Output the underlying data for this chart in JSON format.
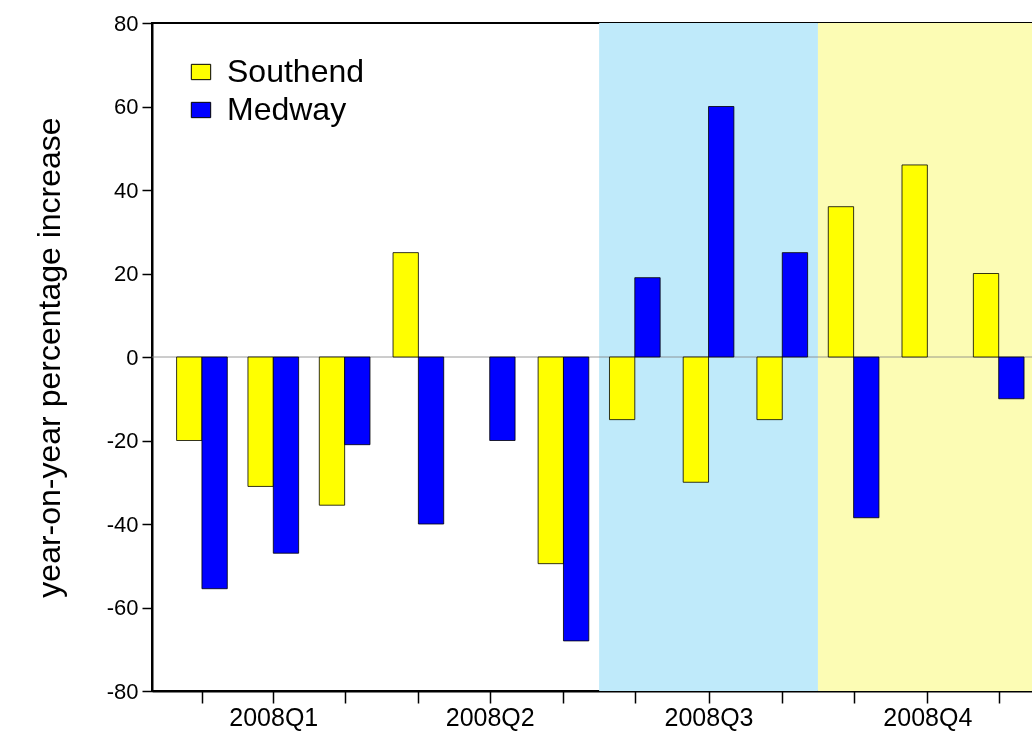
{
  "chart_data": {
    "type": "bar",
    "ylabel": "year-on-year percentage increase",
    "x": [
      "2008-01-16",
      "2008-02-15",
      "2008-03-16",
      "2008-04-16",
      "2008-05-16",
      "2008-06-16",
      "2008-07-16",
      "2008-08-16",
      "2008-09-16",
      "2008-10-16",
      "2008-11-16",
      "2008-12-16"
    ],
    "xlim": [
      "2007-12-26",
      "2008-12-30"
    ],
    "xticks": [
      {
        "value": "2008-01-16",
        "label": null
      },
      {
        "value": "2008-02-15",
        "label": "2008Q1"
      },
      {
        "value": "2008-03-16",
        "label": null
      },
      {
        "value": "2008-04-16",
        "label": null
      },
      {
        "value": "2008-05-16",
        "label": "2008Q2"
      },
      {
        "value": "2008-06-16",
        "label": null
      },
      {
        "value": "2008-07-16",
        "label": null
      },
      {
        "value": "2008-08-16",
        "label": "2008Q3"
      },
      {
        "value": "2008-09-16",
        "label": null
      },
      {
        "value": "2008-10-16",
        "label": null
      },
      {
        "value": "2008-11-16",
        "label": "2008Q4"
      },
      {
        "value": "2008-12-16",
        "label": null
      }
    ],
    "ylim": [
      -80,
      80
    ],
    "yticks": [
      -80,
      -60,
      -40,
      -20,
      0,
      20,
      40,
      60,
      80
    ],
    "series": [
      {
        "name": "Southend",
        "color": "#ffff00",
        "values": [
          -20,
          -31,
          -35.5,
          25,
          null,
          -49.5,
          -15,
          -30,
          -15,
          36,
          46,
          20
        ]
      },
      {
        "name": "Medway",
        "color": "#0000ff",
        "values": [
          -55.5,
          -47,
          -21,
          -40,
          -20,
          -68,
          19,
          60,
          25,
          -38.5,
          null,
          -10
        ]
      }
    ],
    "bands": [
      {
        "axis": "x",
        "from": "2008-07-01",
        "to": "2008-10-01",
        "color": "#bfeafa"
      },
      {
        "axis": "x",
        "from": "2008-10-01",
        "to": "2008-12-30",
        "color": "#fcfcb4"
      }
    ],
    "ref_lines": [
      {
        "axis": "y",
        "value": 0,
        "color": "#808080"
      }
    ],
    "legend": "top left",
    "grid": false
  }
}
